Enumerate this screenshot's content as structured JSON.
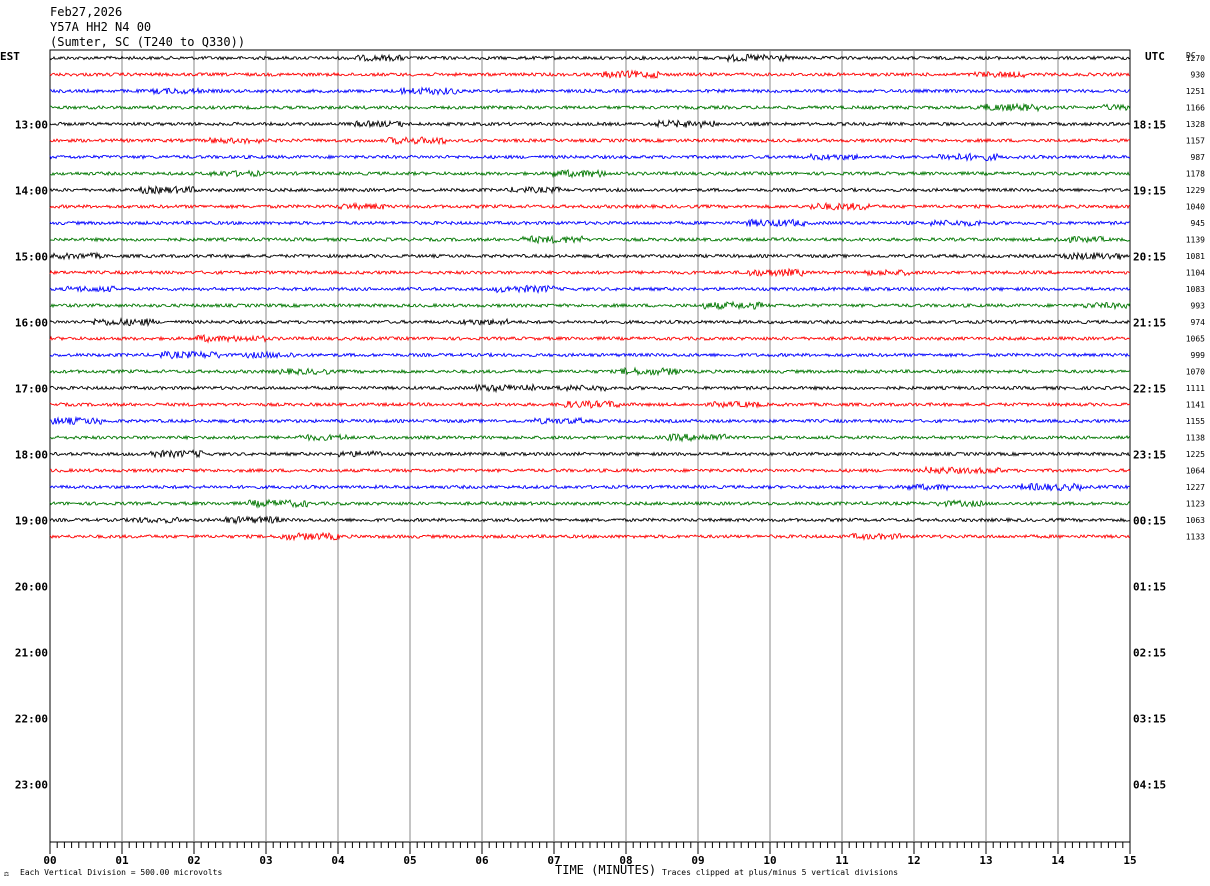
{
  "header": {
    "date": "Feb27,2026",
    "station": "Y57A HH2 N4 00",
    "location": "(Sumter, SC (T240 to Q330))"
  },
  "left_axis_label": "EST",
  "right_axis_label": "UTC",
  "dc_label": "DC",
  "footer": {
    "vertical_division": "Each Vertical Division =  500.00 microvolts",
    "time_label": "TIME (MINUTES)",
    "clip_note": "Traces clipped at plus/minus 5 vertical divisions"
  },
  "chart_data": {
    "type": "line",
    "x_ticks": [
      "00",
      "01",
      "02",
      "03",
      "04",
      "05",
      "06",
      "07",
      "08",
      "09",
      "10",
      "11",
      "12",
      "13",
      "14",
      "15"
    ],
    "xlim": [
      0,
      15
    ],
    "est_labels": [
      "13:00",
      "14:00",
      "15:00",
      "16:00",
      "17:00",
      "18:00",
      "19:00",
      "20:00",
      "21:00",
      "22:00",
      "23:00"
    ],
    "utc_labels": [
      "18:15",
      "19:15",
      "20:15",
      "21:15",
      "22:15",
      "23:15",
      "00:15",
      "01:15",
      "02:15",
      "03:15",
      "04:15"
    ],
    "trace_colors": [
      "#000000",
      "#ff0000",
      "#0000ff",
      "#007700"
    ],
    "dc_values": [
      "1270",
      "930",
      "1251",
      "1166",
      "1328",
      "1157",
      "987",
      "1178",
      "1229",
      "1040",
      "945",
      "1139",
      "1081",
      "1104",
      "1083",
      "993",
      "974",
      "1065",
      "999",
      "1070",
      "1111",
      "1141",
      "1155",
      "1138",
      "1225",
      "1064",
      "1227",
      "1123",
      "1063",
      "1133"
    ]
  }
}
